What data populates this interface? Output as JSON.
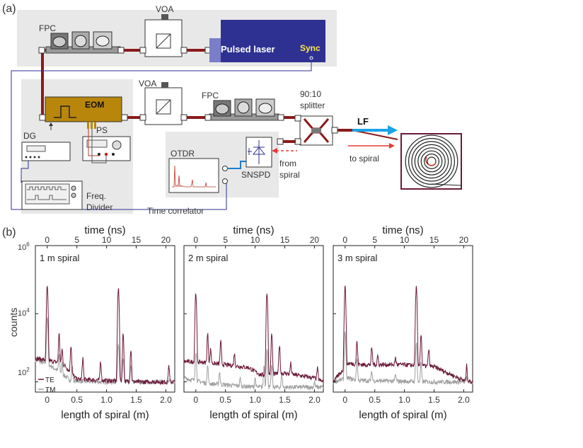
{
  "panel_a": {
    "label": "(a)",
    "labels": {
      "fpc1": "FPC",
      "voa1": "VOA",
      "pulsed_laser": "Pulsed laser",
      "sync": "Sync",
      "eom": "EOM",
      "voa2": "VOA",
      "fpc2": "FPC",
      "splitter_ratio": "90:10",
      "splitter_word": "splitter",
      "lf": "LF",
      "to_spiral": "to spiral",
      "dg": "DG",
      "ps": "PS",
      "freq": "Freq.",
      "divider": "Divider",
      "otdr": "OTDR",
      "snspd": "SNSPD",
      "from": "from",
      "from_spiral_word": "spiral",
      "time_correlator": "Time correlator"
    },
    "colors": {
      "fiber": "#8b1a1a",
      "laser": "#2e3192",
      "laser_light": "#5b5fb8",
      "eom": "#b8860b",
      "lf_arrow": "#1aa3e8",
      "spiral_frame": "#6b1a3a",
      "electrical": "#2e3192",
      "panel_bg": "#e8e8e8"
    }
  },
  "panel_b": {
    "label": "(b)",
    "ylabel": "counts",
    "y_ticks": [
      "10^2",
      "10^4",
      "10^6"
    ],
    "legend": [
      {
        "name": "TE",
        "color": "#6b1838"
      },
      {
        "name": "TM",
        "color": "#a0a0a0"
      }
    ]
  },
  "chart_data": [
    {
      "type": "line",
      "title": "1 m spiral",
      "xlabel": "length of spiral (m)",
      "x2label": "time (ns)",
      "ylabel": "counts",
      "yscale": "log",
      "ylim": [
        50,
        1000000
      ],
      "xlim": [
        -0.2,
        2.15
      ],
      "x_ticks": [
        0,
        0.5,
        1.0,
        1.5,
        2.0
      ],
      "x_tick_labels": [
        "0",
        "0.5",
        "1.0",
        "1.5",
        "2.0"
      ],
      "x2_ticks": [
        0,
        5,
        10,
        15,
        20
      ],
      "series": [
        {
          "name": "TE",
          "baseline": [
            [
              -0.2,
              500
            ],
            [
              0.15,
              380
            ],
            [
              0.3,
              300
            ],
            [
              0.4,
              180
            ],
            [
              0.5,
              120
            ],
            [
              1.0,
              110
            ],
            [
              1.5,
              100
            ],
            [
              2.15,
              100
            ]
          ],
          "peaks": [
            [
              0.0,
              60000
            ],
            [
              0.2,
              2500
            ],
            [
              0.25,
              900
            ],
            [
              0.4,
              1200
            ],
            [
              0.6,
              500
            ],
            [
              0.9,
              400
            ],
            [
              1.2,
              55000
            ],
            [
              1.28,
              2500
            ],
            [
              1.41,
              900
            ],
            [
              2.05,
              300
            ]
          ]
        },
        {
          "name": "TM",
          "baseline": [
            [
              -0.2,
              450
            ],
            [
              0.05,
              300
            ],
            [
              0.2,
              200
            ],
            [
              0.4,
              110
            ],
            [
              0.8,
              100
            ],
            [
              2.15,
              100
            ]
          ],
          "peaks": [
            [
              0.0,
              8000
            ],
            [
              0.2,
              600
            ],
            [
              0.25,
              350
            ],
            [
              0.42,
              300
            ],
            [
              1.2,
              1500
            ],
            [
              1.28,
              500
            ],
            [
              1.41,
              300
            ]
          ]
        }
      ]
    },
    {
      "type": "line",
      "title": "2 m spiral",
      "xlabel": "length of spiral (m)",
      "x2label": "time (ns)",
      "ylabel": "counts",
      "yscale": "log",
      "ylim": [
        50,
        1000000
      ],
      "xlim": [
        -0.2,
        2.15
      ],
      "x_ticks": [
        0,
        0.5,
        1.0,
        1.5,
        2.0
      ],
      "x_tick_labels": [
        "0",
        "0.5",
        "1.0",
        "1.5",
        "2.0"
      ],
      "x2_ticks": [
        0,
        5,
        10,
        15,
        20
      ],
      "series": [
        {
          "name": "TE",
          "baseline": [
            [
              -0.2,
              400
            ],
            [
              0.1,
              380
            ],
            [
              0.5,
              320
            ],
            [
              0.9,
              260
            ],
            [
              1.0,
              200
            ],
            [
              1.1,
              160
            ],
            [
              1.5,
              180
            ],
            [
              2.0,
              130
            ],
            [
              2.15,
              100
            ]
          ],
          "peaks": [
            [
              0.0,
              40000
            ],
            [
              0.2,
              2500
            ],
            [
              0.25,
              900
            ],
            [
              0.42,
              1500
            ],
            [
              0.65,
              700
            ],
            [
              1.2,
              40000
            ],
            [
              1.28,
              2500
            ],
            [
              1.41,
              1200
            ],
            [
              1.6,
              350
            ],
            [
              2.05,
              250
            ]
          ]
        },
        {
          "name": "TM",
          "baseline": [
            [
              -0.2,
              130
            ],
            [
              0.2,
              90
            ],
            [
              0.8,
              75
            ],
            [
              1.0,
              70
            ],
            [
              2.15,
              70
            ]
          ],
          "peaks": [
            [
              0.0,
              800
            ],
            [
              0.2,
              300
            ],
            [
              0.4,
              200
            ],
            [
              0.75,
              130
            ],
            [
              1.0,
              130
            ],
            [
              1.15,
              300
            ],
            [
              1.2,
              900
            ],
            [
              1.28,
              300
            ],
            [
              1.45,
              160
            ],
            [
              2.0,
              100
            ]
          ]
        }
      ]
    },
    {
      "type": "line",
      "title": "3 m spiral",
      "xlabel": "length of spiral (m)",
      "x2label": "time (ns)",
      "ylabel": "counts",
      "yscale": "log",
      "ylim": [
        50,
        1000000
      ],
      "xlim": [
        -0.2,
        2.15
      ],
      "x_ticks": [
        0,
        0.5,
        1.0,
        1.5,
        2.0
      ],
      "x_tick_labels": [
        "0",
        "0.5",
        "1.0",
        "1.5",
        "2.0"
      ],
      "x2_ticks": [
        0,
        5,
        10,
        15,
        20
      ],
      "series": [
        {
          "name": "TE",
          "baseline": [
            [
              -0.2,
              100
            ],
            [
              0.05,
              350
            ],
            [
              0.3,
              320
            ],
            [
              1.0,
              320
            ],
            [
              1.5,
              280
            ],
            [
              2.0,
              110
            ],
            [
              2.15,
              100
            ]
          ],
          "peaks": [
            [
              0.0,
              60000
            ],
            [
              0.2,
              1500
            ],
            [
              0.45,
              1000
            ],
            [
              0.55,
              600
            ],
            [
              0.85,
              500
            ],
            [
              1.2,
              60000
            ],
            [
              1.28,
              2500
            ],
            [
              1.41,
              900
            ],
            [
              2.05,
              300
            ]
          ]
        },
        {
          "name": "TM",
          "baseline": [
            [
              -0.2,
              100
            ],
            [
              0.05,
              130
            ],
            [
              0.2,
              110
            ],
            [
              1.5,
              100
            ],
            [
              2.15,
              100
            ]
          ],
          "peaks": [
            [
              0.0,
              3000
            ],
            [
              0.2,
              500
            ],
            [
              0.45,
              200
            ],
            [
              0.85,
              160
            ],
            [
              1.2,
              1500
            ],
            [
              1.28,
              350
            ],
            [
              2.05,
              130
            ]
          ]
        }
      ]
    }
  ]
}
